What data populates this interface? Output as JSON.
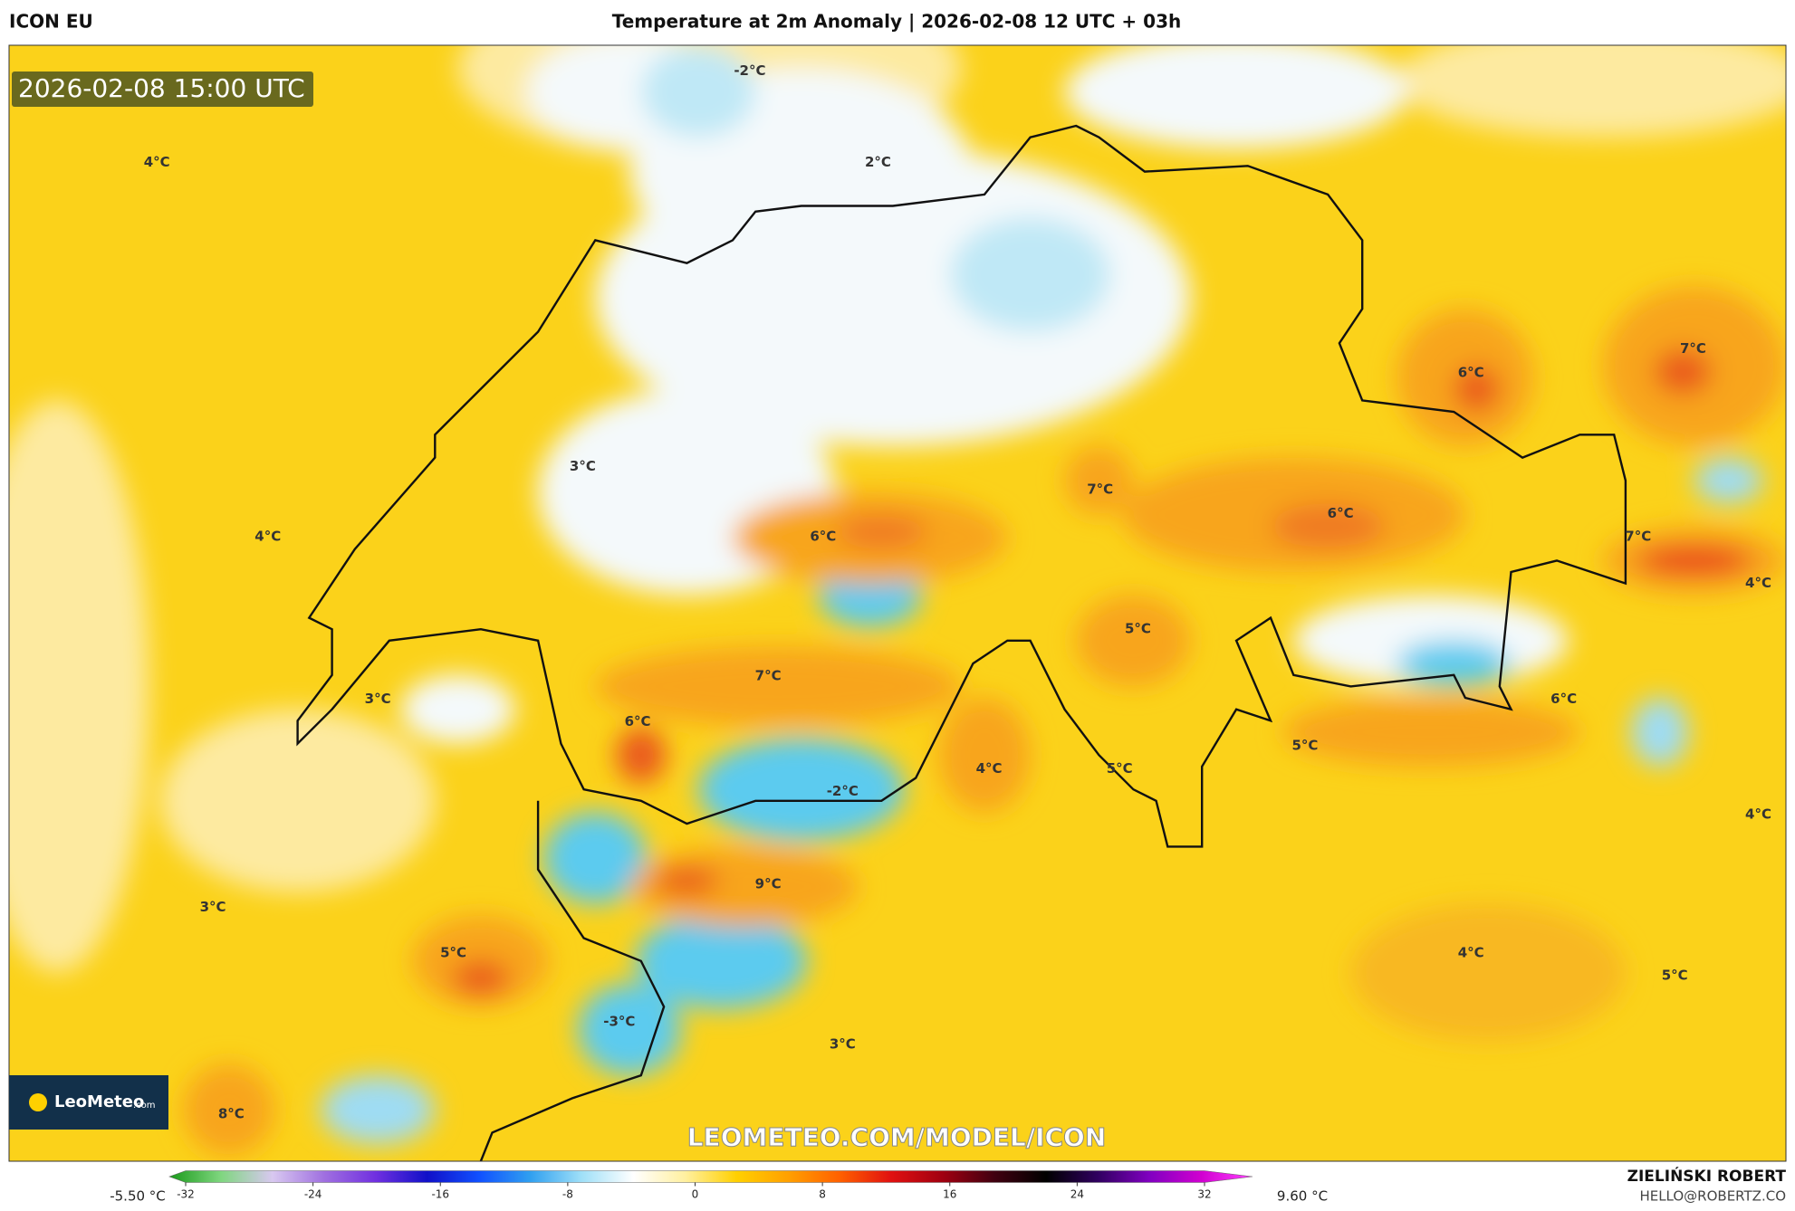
{
  "header": {
    "model": "ICON EU",
    "title": "Temperature at 2m Anomaly | 2026-02-08 12 UTC + 03h"
  },
  "map": {
    "timestamp": "2026-02-08 15:00 UTC",
    "labels": [
      "-2°C",
      "2°C",
      "4°C",
      "3°C",
      "4°C",
      "6°C",
      "7°C",
      "6°C",
      "6°C",
      "7°C",
      "7°C",
      "4°C",
      "5°C",
      "3°C",
      "7°C",
      "6°C",
      "6°C",
      "5°C",
      "4°C",
      "5°C",
      "-2°C",
      "4°C",
      "9°C",
      "3°C",
      "5°C",
      "4°C",
      "5°C",
      "-3°C",
      "3°C",
      "8°C"
    ],
    "watermark": "LEOMETEO.COM/MODEL/ICON",
    "logo": {
      "name": "LeoMeteo",
      "suffix": ".com"
    }
  },
  "colorbar": {
    "min_label": "-5.50 °C",
    "max_label": "9.60 °C",
    "ticks": [
      -32,
      -24,
      -16,
      -8,
      0,
      8,
      16,
      24,
      32
    ],
    "colors": [
      "#1a9a1a",
      "#7fd67f",
      "#d8c8f0",
      "#a070e0",
      "#7030e0",
      "#1010c8",
      "#1050ff",
      "#30a0f0",
      "#a0e0f8",
      "#ffffff",
      "#fff0a0",
      "#ffd000",
      "#ffa000",
      "#ff6000",
      "#e01010",
      "#a00010",
      "#400010",
      "#000000",
      "#300060",
      "#8000c0",
      "#d000d0",
      "#ff40ff"
    ]
  },
  "author": {
    "name": "ZIELIŃSKI ROBERT",
    "contact": "HELLO@ROBERTZ.CO"
  }
}
